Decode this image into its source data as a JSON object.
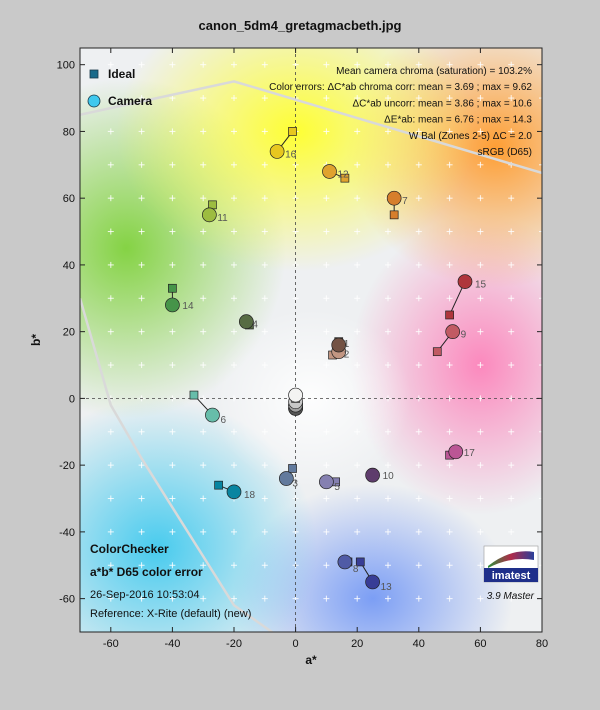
{
  "chart_data": {
    "type": "scatter",
    "title": "canon_5dm4_gretagmacbeth.jpg",
    "xlabel": "a*",
    "ylabel": "b*",
    "xlim": [
      -70,
      80
    ],
    "ylim": [
      -70,
      105
    ],
    "xticks": [
      -60,
      -40,
      -20,
      0,
      20,
      40,
      60,
      80
    ],
    "yticks": [
      -60,
      -40,
      -20,
      0,
      20,
      40,
      60,
      80,
      100
    ],
    "grid": true,
    "legend": {
      "position": "top-left",
      "ideal_label": "Ideal",
      "camera_label": "Camera"
    },
    "annotations": [
      "Mean camera chroma (saturation) = 103.2%",
      "Color errors: ΔC*ab chroma corr:  mean = 3.69 ;  max = 9.62",
      "ΔC*ab uncorr:  mean = 3.86 ;  max = 10.6",
      "ΔE*ab:  mean = 6.76 ;  max = 14.3",
      "W Bal (Zones 2-5) ΔC = 2.0",
      "sRGB (D65)"
    ],
    "bottom_text": {
      "name": "ColorChecker",
      "subtitle": "a*b* D65 color error",
      "date": "26-Sep-2016 10:53:04",
      "reference": "Reference: X-Rite (default) (new)"
    },
    "version": "3.9  Master",
    "logo_text": "imatest",
    "patches": [
      {
        "id": 1,
        "ideal": [
          14,
          17
        ],
        "camera": [
          14,
          16
        ],
        "color": "#735244"
      },
      {
        "id": 2,
        "ideal": [
          12,
          13
        ],
        "camera": [
          14,
          14
        ],
        "color": "#c29682"
      },
      {
        "id": 3,
        "ideal": [
          -1,
          -21
        ],
        "camera": [
          -3,
          -24
        ],
        "color": "#627a9d"
      },
      {
        "id": 4,
        "ideal": [
          -15,
          22
        ],
        "camera": [
          -16,
          23
        ],
        "color": "#576c43"
      },
      {
        "id": 5,
        "ideal": [
          13,
          -25
        ],
        "camera": [
          10,
          -25
        ],
        "color": "#8580b1"
      },
      {
        "id": 6,
        "ideal": [
          -33,
          1
        ],
        "camera": [
          -27,
          -5
        ],
        "color": "#67bdaa"
      },
      {
        "id": 7,
        "ideal": [
          32,
          55
        ],
        "camera": [
          32,
          60
        ],
        "color": "#d67e2c"
      },
      {
        "id": 8,
        "ideal": [
          17,
          -49
        ],
        "camera": [
          16,
          -49
        ],
        "color": "#505ba6"
      },
      {
        "id": 9,
        "ideal": [
          46,
          14
        ],
        "camera": [
          51,
          20
        ],
        "color": "#c15a63"
      },
      {
        "id": 10,
        "ideal": [
          25,
          -23
        ],
        "camera": [
          25,
          -23
        ],
        "color": "#5e3c6c"
      },
      {
        "id": 11,
        "ideal": [
          -27,
          58
        ],
        "camera": [
          -28,
          55
        ],
        "color": "#9dbc40"
      },
      {
        "id": 12,
        "ideal": [
          16,
          66
        ],
        "camera": [
          11,
          68
        ],
        "color": "#e0a32e"
      },
      {
        "id": 13,
        "ideal": [
          21,
          -49
        ],
        "camera": [
          25,
          -55
        ],
        "color": "#383d96"
      },
      {
        "id": 14,
        "ideal": [
          -40,
          33
        ],
        "camera": [
          -40,
          28
        ],
        "color": "#469449"
      },
      {
        "id": 15,
        "ideal": [
          50,
          25
        ],
        "camera": [
          55,
          35
        ],
        "color": "#af363c"
      },
      {
        "id": 16,
        "ideal": [
          -1,
          80
        ],
        "camera": [
          -6,
          74
        ],
        "color": "#e7c71f"
      },
      {
        "id": 17,
        "ideal": [
          50,
          -17
        ],
        "camera": [
          52,
          -16
        ],
        "color": "#bb5695"
      },
      {
        "id": 18,
        "ideal": [
          -25,
          -26
        ],
        "camera": [
          -20,
          -28
        ],
        "color": "#0885a1"
      },
      {
        "id": 19,
        "ideal": [
          0,
          0
        ],
        "camera": [
          0,
          1
        ],
        "color": "#f3f3f2"
      },
      {
        "id": 20,
        "ideal": [
          0,
          0
        ],
        "camera": [
          0,
          -1
        ],
        "color": "#c8c8c8"
      },
      {
        "id": 21,
        "ideal": [
          0,
          0
        ],
        "camera": [
          0,
          -2
        ],
        "color": "#a0a0a0"
      },
      {
        "id": 22,
        "ideal": [
          0,
          0
        ],
        "camera": [
          0,
          -2
        ],
        "color": "#7a7a79"
      },
      {
        "id": 23,
        "ideal": [
          0,
          0
        ],
        "camera": [
          0,
          -3
        ],
        "color": "#555555"
      },
      {
        "id": 24,
        "ideal": [
          0,
          0
        ],
        "camera": [
          0,
          -3
        ],
        "color": "#343434"
      }
    ],
    "srgb_boundary": [
      [
        -70,
        85
      ],
      [
        -20,
        95
      ],
      [
        82,
        67
      ]
    ],
    "srgb_boundary_lower": [
      [
        -70,
        30
      ],
      [
        -60,
        -2
      ],
      [
        -50,
        -18
      ],
      [
        -20,
        -62
      ],
      [
        0,
        -75
      ]
    ]
  }
}
